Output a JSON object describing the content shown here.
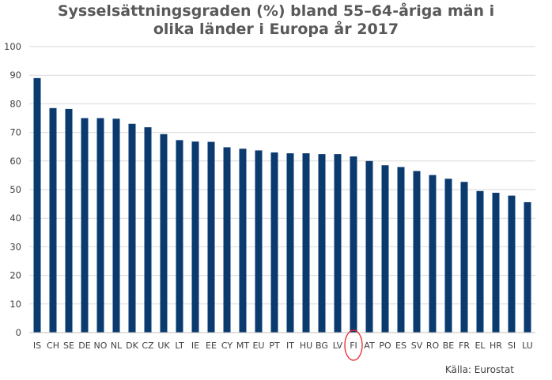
{
  "chart_data": {
    "type": "bar",
    "title_lines": [
      "Sysselsättningsgraden (%) bland 55–64-åriga män i",
      "olika länder i Europa år 2017"
    ],
    "categories": [
      "IS",
      "CH",
      "SE",
      "DE",
      "NO",
      "NL",
      "DK",
      "CZ",
      "UK",
      "LT",
      "IE",
      "EE",
      "CY",
      "MT",
      "EU",
      "PT",
      "IT",
      "HU",
      "BG",
      "LV",
      "FI",
      "AT",
      "PO",
      "ES",
      "SV",
      "RO",
      "BE",
      "FR",
      "EL",
      "HR",
      "SI",
      "LU"
    ],
    "values": [
      89,
      78.5,
      78.2,
      75,
      75,
      74.8,
      73,
      71.8,
      69.4,
      67.3,
      66.8,
      66.7,
      64.8,
      64.3,
      63.7,
      63,
      62.7,
      62.7,
      62.4,
      62.4,
      61.6,
      60,
      58.5,
      57.9,
      56.5,
      55.1,
      53.8,
      52.7,
      49.5,
      48.9,
      47.9,
      45.6
    ],
    "ylim": [
      0,
      100
    ],
    "yticks": [
      0,
      10,
      20,
      30,
      40,
      50,
      60,
      70,
      80,
      90,
      100
    ],
    "grid": true,
    "bar_color": "#0b3a6f",
    "highlight": {
      "category": "FI",
      "color": "#e8262a"
    },
    "source": "Källa: Eurostat"
  }
}
